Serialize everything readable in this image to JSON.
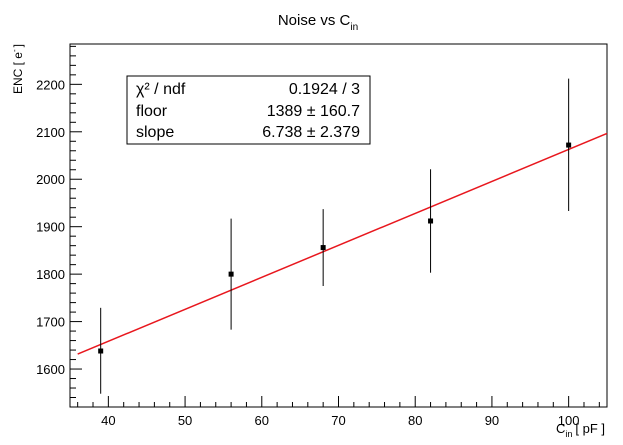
{
  "chart_data": {
    "type": "scatter",
    "title": "Noise vs C",
    "title_subscript": "in",
    "xlabel_main": "C",
    "xlabel_sub": "in",
    "xlabel_unit": "[ pF ]",
    "ylabel_main": "ENC [ e",
    "ylabel_sup": "-",
    "ylabel_close": "]",
    "xlim": [
      35,
      105
    ],
    "ylim": [
      1520,
      2285
    ],
    "x_ticks": [
      40,
      50,
      60,
      70,
      80,
      90,
      100
    ],
    "y_ticks": [
      1600,
      1700,
      1800,
      1900,
      2000,
      2100,
      2200
    ],
    "grid": false,
    "points": [
      {
        "x": 39,
        "y": 1638,
        "yerr_low": 1548,
        "yerr_high": 1729
      },
      {
        "x": 56,
        "y": 1800,
        "yerr_low": 1683,
        "yerr_high": 1917
      },
      {
        "x": 68,
        "y": 1856,
        "yerr_low": 1775,
        "yerr_high": 1937
      },
      {
        "x": 82,
        "y": 1912,
        "yerr_low": 1803,
        "yerr_high": 2021
      },
      {
        "x": 100,
        "y": 2072,
        "yerr_low": 1933,
        "yerr_high": 2212
      }
    ],
    "fit": {
      "color": "#e8171e",
      "x_start": 36,
      "x_end": 105,
      "floor": 1389,
      "slope": 6.738
    },
    "stats_box": {
      "rows": [
        {
          "label": "χ² / ndf",
          "value": "0.1924 / 3"
        },
        {
          "label": "floor",
          "value": "1389 ± 160.7"
        },
        {
          "label": "slope",
          "value": "6.738 ± 2.379"
        }
      ]
    }
  }
}
